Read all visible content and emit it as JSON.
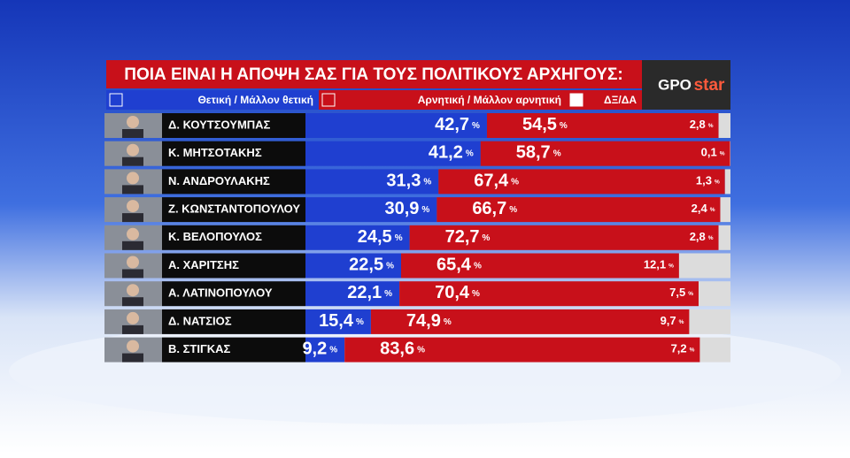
{
  "chart_data": {
    "type": "stacked-bar",
    "title": "ΠΟΙΑ ΕΙΝΑΙ Η ΑΠΟΨΗ ΣΑΣ ΓΙΑ ΤΟΥΣ ΠΟΛΙΤΙΚΟΥΣ ΑΡΧΗΓΟΥΣ:",
    "logo": [
      "GPO",
      "star"
    ],
    "categories": [
      "Δ. ΚΟΥΤΣΟΥΜΠΑΣ",
      "Κ. ΜΗΤΣΟΤΑΚΗΣ",
      "Ν. ΑΝΔΡΟΥΛΑΚΗΣ",
      "Ζ. ΚΩΝΣΤΑΝΤΟΠΟΥΛΟΥ",
      "Κ. ΒΕΛΟΠΟΥΛΟΣ",
      "Α. ΧΑΡΙΤΣΗΣ",
      "Α. ΛΑΤΙΝΟΠΟΥΛΟΥ",
      "Δ. ΝΑΤΣΙΟΣ",
      "Β. ΣΤΙΓΚΑΣ"
    ],
    "xlim": [
      0,
      100
    ],
    "series": [
      {
        "name": "Θετική / Μάλλον θετική",
        "color": "#1f3fd0",
        "values": [
          42.7,
          41.2,
          31.3,
          30.9,
          24.5,
          22.5,
          22.1,
          15.4,
          9.2
        ],
        "value_labels": [
          "42,7%",
          "41,2%",
          "31,3%",
          "30,9%",
          "24,5%",
          "22,5%",
          "22,1%",
          "15,4%",
          "9,2%"
        ]
      },
      {
        "name": "Αρνητική / Μάλλον αρνητική",
        "color": "#c8101a",
        "values": [
          54.5,
          58.7,
          67.4,
          66.7,
          72.7,
          65.4,
          70.4,
          74.9,
          83.6
        ],
        "value_labels": [
          "54,5%",
          "58,7%",
          "67,4%",
          "66,7%",
          "72,7%",
          "65,4%",
          "70,4%",
          "74,9%",
          "83,6%"
        ]
      },
      {
        "name": "ΔΞ/ΔΑ",
        "color": "#dcdcdc",
        "values": [
          2.8,
          0.1,
          1.3,
          2.4,
          2.8,
          12.1,
          7.5,
          9.7,
          7.2
        ],
        "value_labels": [
          "2,8%",
          "0,1%",
          "1,3%",
          "2,4%",
          "2,8%",
          "12,1%",
          "7,5%",
          "9,7%",
          "7,2%"
        ]
      }
    ]
  }
}
